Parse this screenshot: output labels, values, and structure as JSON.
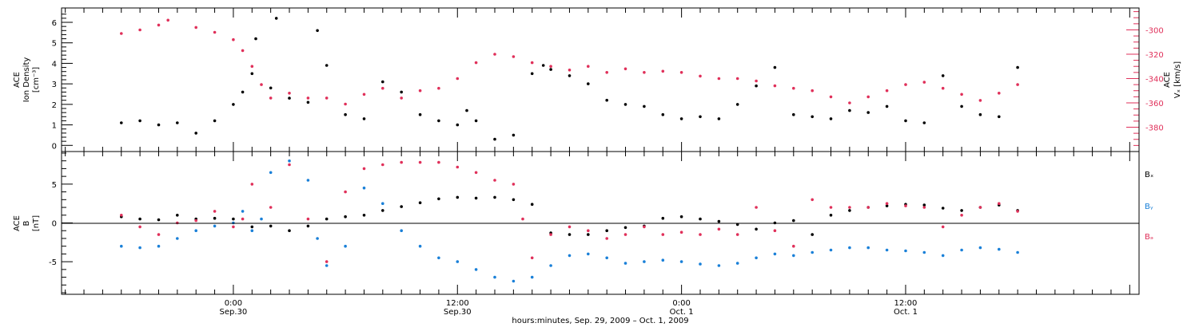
{
  "chart_data": [
    {
      "type": "scatter",
      "panel": "top",
      "ylabel_lines": [
        "ACE",
        "Ion Density",
        "[cm⁻³]"
      ],
      "y2label_lines": [
        "ACE",
        "Vₓ [km/s]"
      ],
      "ylim": [
        -0.3,
        6.7
      ],
      "yticks": [
        0,
        1,
        2,
        3,
        4,
        5,
        6
      ],
      "y2lim": [
        -400,
        -282
      ],
      "y2ticks": [
        -300,
        -320,
        -340,
        -360,
        -380
      ],
      "colors": {
        "density": "#000000",
        "vx": "#e0305a"
      },
      "series": [
        {
          "key": "density",
          "points": [
            [
              -6,
              1.1
            ],
            [
              -5,
              1.2
            ],
            [
              -4,
              1.0
            ],
            [
              -3,
              1.1
            ],
            [
              -2,
              0.6
            ],
            [
              -1,
              1.2
            ],
            [
              0,
              2.0
            ],
            [
              0.5,
              2.6
            ],
            [
              1,
              3.5
            ],
            [
              1.2,
              5.2
            ],
            [
              2,
              2.8
            ],
            [
              2.3,
              6.2
            ],
            [
              3,
              2.3
            ],
            [
              4,
              2.1
            ],
            [
              4.5,
              5.6
            ],
            [
              5,
              3.9
            ],
            [
              6,
              1.5
            ],
            [
              7,
              1.3
            ],
            [
              8,
              3.1
            ],
            [
              9,
              2.6
            ],
            [
              10,
              1.5
            ],
            [
              11,
              1.2
            ],
            [
              12,
              1.0
            ],
            [
              12.5,
              1.7
            ],
            [
              13,
              1.2
            ],
            [
              14,
              0.3
            ],
            [
              15,
              0.5
            ],
            [
              16,
              3.5
            ],
            [
              16.6,
              3.9
            ],
            [
              17,
              3.7
            ],
            [
              18,
              3.4
            ],
            [
              19,
              3.0
            ],
            [
              20,
              2.2
            ],
            [
              21,
              2.0
            ],
            [
              22,
              1.9
            ],
            [
              23,
              1.5
            ],
            [
              24,
              1.3
            ],
            [
              25,
              1.4
            ],
            [
              26,
              1.3
            ],
            [
              27,
              2.0
            ],
            [
              28,
              2.9
            ],
            [
              29,
              3.8
            ],
            [
              30,
              1.5
            ],
            [
              31,
              1.4
            ],
            [
              32,
              1.3
            ],
            [
              33,
              1.7
            ],
            [
              34,
              1.6
            ],
            [
              35,
              1.9
            ],
            [
              36,
              1.2
            ],
            [
              37,
              1.1
            ],
            [
              38,
              3.4
            ],
            [
              39,
              1.9
            ],
            [
              40,
              1.5
            ],
            [
              41,
              1.4
            ],
            [
              42,
              3.8
            ]
          ]
        },
        {
          "key": "vx",
          "points": [
            [
              -6,
              -303
            ],
            [
              -5,
              -300
            ],
            [
              -4,
              -296
            ],
            [
              -3.5,
              -292
            ],
            [
              -2,
              -298
            ],
            [
              -1,
              -302
            ],
            [
              0,
              -308
            ],
            [
              0.5,
              -317
            ],
            [
              1,
              -330
            ],
            [
              1.5,
              -345
            ],
            [
              2,
              -356
            ],
            [
              3,
              -352
            ],
            [
              4,
              -356
            ],
            [
              5,
              -356
            ],
            [
              6,
              -361
            ],
            [
              7,
              -353
            ],
            [
              8,
              -348
            ],
            [
              9,
              -356
            ],
            [
              10,
              -350
            ],
            [
              11,
              -348
            ],
            [
              12,
              -340
            ],
            [
              13,
              -327
            ],
            [
              14,
              -320
            ],
            [
              15,
              -322
            ],
            [
              16,
              -327
            ],
            [
              17,
              -330
            ],
            [
              18,
              -333
            ],
            [
              19,
              -330
            ],
            [
              20,
              -335
            ],
            [
              21,
              -332
            ],
            [
              22,
              -335
            ],
            [
              23,
              -334
            ],
            [
              24,
              -335
            ],
            [
              25,
              -338
            ],
            [
              26,
              -340
            ],
            [
              27,
              -340
            ],
            [
              28,
              -342
            ],
            [
              29,
              -346
            ],
            [
              30,
              -348
            ],
            [
              31,
              -350
            ],
            [
              32,
              -355
            ],
            [
              33,
              -360
            ],
            [
              34,
              -355
            ],
            [
              35,
              -350
            ],
            [
              36,
              -345
            ],
            [
              37,
              -343
            ],
            [
              38,
              -348
            ],
            [
              39,
              -353
            ],
            [
              40,
              -358
            ],
            [
              41,
              -352
            ],
            [
              42,
              -345
            ]
          ]
        }
      ]
    },
    {
      "type": "scatter",
      "panel": "bottom",
      "ylabel_lines": [
        "ACE",
        "B",
        "[nT]"
      ],
      "ylim": [
        -9.2,
        9.2
      ],
      "yticks": [
        -5,
        0,
        5
      ],
      "legend": [
        {
          "label": "Bₓ",
          "color": "#000000"
        },
        {
          "label": "Bᵧ",
          "color": "#1a80d8"
        },
        {
          "label": "Bₔ",
          "color": "#e0305a"
        }
      ],
      "series": [
        {
          "key": "bx",
          "points": [
            [
              -6,
              0.8
            ],
            [
              -5,
              0.5
            ],
            [
              -4,
              0.4
            ],
            [
              -3,
              1.0
            ],
            [
              -2,
              0.5
            ],
            [
              -1,
              0.6
            ],
            [
              0,
              0.5
            ],
            [
              1,
              -0.5
            ],
            [
              2,
              -0.4
            ],
            [
              3,
              -1.0
            ],
            [
              4,
              -0.4
            ],
            [
              5,
              0.5
            ],
            [
              6,
              0.8
            ],
            [
              7,
              1.0
            ],
            [
              8,
              1.6
            ],
            [
              9,
              2.1
            ],
            [
              10,
              2.6
            ],
            [
              11,
              3.1
            ],
            [
              12,
              3.3
            ],
            [
              13,
              3.2
            ],
            [
              14,
              3.3
            ],
            [
              15,
              3.0
            ],
            [
              16,
              2.4
            ],
            [
              17,
              -1.3
            ],
            [
              18,
              -1.5
            ],
            [
              19,
              -1.5
            ],
            [
              20,
              -1.0
            ],
            [
              21,
              -0.6
            ],
            [
              22,
              -0.4
            ],
            [
              23,
              0.6
            ],
            [
              24,
              0.8
            ],
            [
              25,
              0.5
            ],
            [
              26,
              0.2
            ],
            [
              27,
              -0.2
            ],
            [
              28,
              -0.8
            ],
            [
              29,
              0.0
            ],
            [
              30,
              0.3
            ],
            [
              31,
              -1.5
            ],
            [
              32,
              1.0
            ],
            [
              33,
              1.6
            ],
            [
              34,
              2.0
            ],
            [
              35,
              2.2
            ],
            [
              36,
              2.4
            ],
            [
              37,
              2.3
            ],
            [
              38,
              1.9
            ],
            [
              39,
              1.6
            ],
            [
              40,
              2.0
            ],
            [
              41,
              2.3
            ],
            [
              42,
              1.6
            ]
          ]
        },
        {
          "key": "by",
          "points": [
            [
              -6,
              -3.0
            ],
            [
              -5,
              -3.2
            ],
            [
              -4,
              -3.0
            ],
            [
              -3,
              -2.0
            ],
            [
              -2,
              -1.0
            ],
            [
              -1,
              -0.4
            ],
            [
              0,
              0.0
            ],
            [
              0.5,
              1.5
            ],
            [
              1,
              -1.0
            ],
            [
              1.5,
              0.5
            ],
            [
              2,
              6.5
            ],
            [
              3,
              8.0
            ],
            [
              4,
              5.5
            ],
            [
              4.5,
              -2.0
            ],
            [
              5,
              -5.5
            ],
            [
              6,
              -3.0
            ],
            [
              7,
              4.5
            ],
            [
              8,
              2.5
            ],
            [
              9,
              -1.0
            ],
            [
              10,
              -3.0
            ],
            [
              11,
              -4.5
            ],
            [
              12,
              -5.0
            ],
            [
              13,
              -6.0
            ],
            [
              14,
              -7.0
            ],
            [
              15,
              -7.5
            ],
            [
              16,
              -7.0
            ],
            [
              17,
              -5.5
            ],
            [
              18,
              -4.2
            ],
            [
              19,
              -4.0
            ],
            [
              20,
              -4.5
            ],
            [
              21,
              -5.2
            ],
            [
              22,
              -5.0
            ],
            [
              23,
              -4.8
            ],
            [
              24,
              -5.0
            ],
            [
              25,
              -5.3
            ],
            [
              26,
              -5.5
            ],
            [
              27,
              -5.2
            ],
            [
              28,
              -4.5
            ],
            [
              29,
              -4.0
            ],
            [
              30,
              -4.2
            ],
            [
              31,
              -3.8
            ],
            [
              32,
              -3.5
            ],
            [
              33,
              -3.2
            ],
            [
              34,
              -3.2
            ],
            [
              35,
              -3.5
            ],
            [
              36,
              -3.6
            ],
            [
              37,
              -3.8
            ],
            [
              38,
              -4.2
            ],
            [
              39,
              -3.5
            ],
            [
              40,
              -3.2
            ],
            [
              41,
              -3.4
            ],
            [
              42,
              -3.8
            ]
          ]
        },
        {
          "key": "bz",
          "points": [
            [
              -6,
              1.0
            ],
            [
              -5,
              -0.5
            ],
            [
              -4,
              -1.5
            ],
            [
              -3,
              0.0
            ],
            [
              -2,
              0.3
            ],
            [
              -1,
              1.5
            ],
            [
              0,
              -0.5
            ],
            [
              0.5,
              0.5
            ],
            [
              1,
              5.0
            ],
            [
              2,
              2.0
            ],
            [
              3,
              7.5
            ],
            [
              4,
              0.5
            ],
            [
              5,
              -5.0
            ],
            [
              6,
              4.0
            ],
            [
              7,
              7.0
            ],
            [
              8,
              7.5
            ],
            [
              9,
              7.8
            ],
            [
              10,
              7.8
            ],
            [
              11,
              7.8
            ],
            [
              12,
              7.2
            ],
            [
              13,
              6.5
            ],
            [
              14,
              5.5
            ],
            [
              15,
              5.0
            ],
            [
              15.5,
              0.5
            ],
            [
              16,
              -4.5
            ],
            [
              17,
              -1.5
            ],
            [
              18,
              -0.5
            ],
            [
              19,
              -1.0
            ],
            [
              20,
              -2.0
            ],
            [
              21,
              -1.5
            ],
            [
              22,
              -0.5
            ],
            [
              23,
              -1.5
            ],
            [
              24,
              -1.2
            ],
            [
              25,
              -1.5
            ],
            [
              26,
              -0.8
            ],
            [
              27,
              -1.5
            ],
            [
              28,
              2.0
            ],
            [
              29,
              -1.0
            ],
            [
              30,
              -3.0
            ],
            [
              31,
              3.0
            ],
            [
              32,
              2.0
            ],
            [
              33,
              2.0
            ],
            [
              34,
              2.0
            ],
            [
              35,
              2.5
            ],
            [
              36,
              2.2
            ],
            [
              37,
              2.0
            ],
            [
              38,
              -0.5
            ],
            [
              39,
              1.0
            ],
            [
              40,
              2.0
            ],
            [
              41,
              2.5
            ],
            [
              42,
              1.5
            ]
          ]
        }
      ]
    }
  ],
  "x_axis": {
    "xlim": [
      -9.2,
      48.5
    ],
    "major_ticks": [
      {
        "x": 0,
        "line1": "0:00",
        "line2": "Sep.30"
      },
      {
        "x": 12,
        "line1": "12:00",
        "line2": "Sep.30"
      },
      {
        "x": 24,
        "line1": "0:00",
        "line2": "Oct. 1"
      },
      {
        "x": 36,
        "line1": "12:00",
        "line2": "Oct. 1"
      }
    ],
    "title": "hours:minutes, Sep. 29, 2009 – Oct. 1, 2009"
  }
}
